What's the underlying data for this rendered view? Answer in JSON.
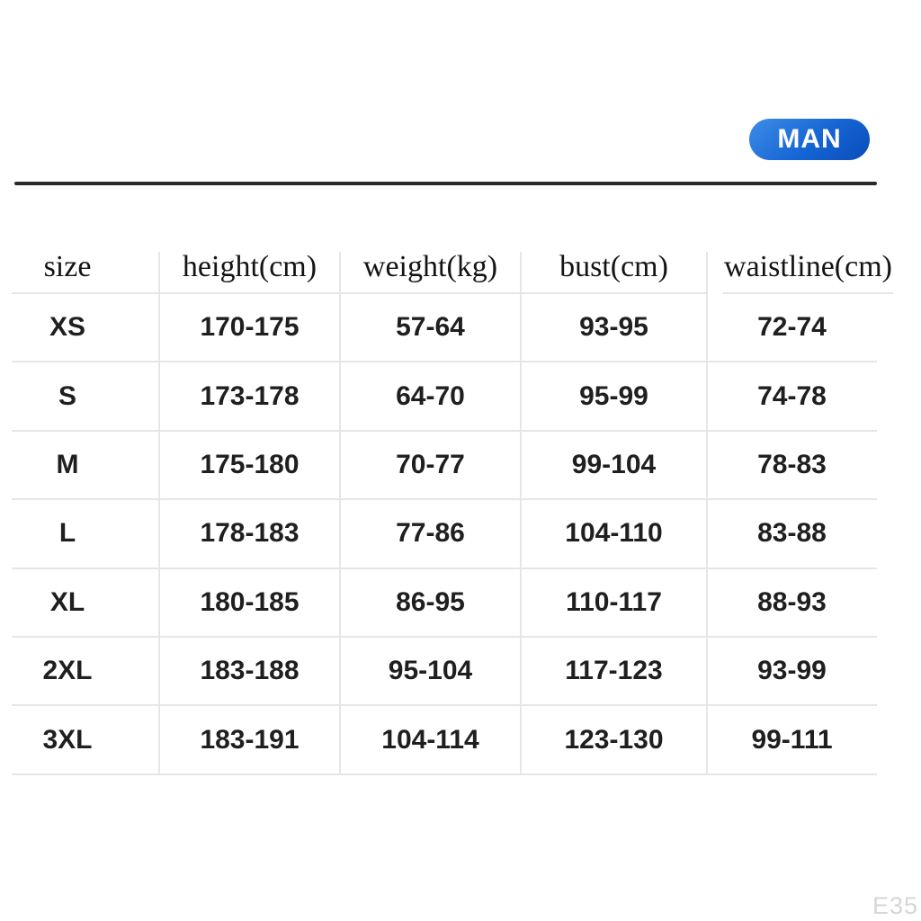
{
  "badge": {
    "label": "MAN",
    "bg_gradient_start": "#3e8ce8",
    "bg_gradient_end": "#0a4cba",
    "text_color": "#ffffff"
  },
  "table": {
    "headers": [
      "size",
      "height(cm)",
      "weight(kg)",
      "bust(cm)",
      "waistline(cm)"
    ],
    "rows": [
      [
        "XS",
        "170-175",
        "57-64",
        "93-95",
        "72-74"
      ],
      [
        "S",
        "173-178",
        "64-70",
        "95-99",
        "74-78"
      ],
      [
        "M",
        "175-180",
        "70-77",
        "99-104",
        "78-83"
      ],
      [
        "L",
        "178-183",
        "77-86",
        "104-110",
        "83-88"
      ],
      [
        "XL",
        "180-185",
        "86-95",
        "110-117",
        "88-93"
      ],
      [
        "2XL",
        "183-188",
        "95-104",
        "117-123",
        "93-99"
      ],
      [
        "3XL",
        "183-191",
        "104-114",
        "123-130",
        "99-111"
      ]
    ]
  },
  "watermark": {
    "label": "E35",
    "color": "#d6d6d6"
  },
  "colors": {
    "background": "#ffffff",
    "rule": "#2a2a2a",
    "grid_line": "#e6e6e6",
    "header_text": "#141414",
    "cell_text": "#1f1f1f"
  }
}
